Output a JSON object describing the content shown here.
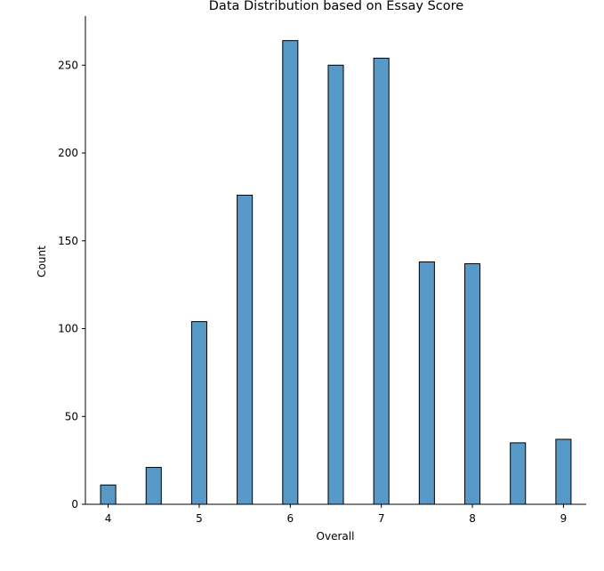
{
  "chart_data": {
    "type": "bar",
    "title": "Data Distribution based on Essay Score",
    "xlabel": "Overall",
    "ylabel": "Count",
    "xlim": [
      3.75,
      9.25
    ],
    "ylim": [
      0,
      278
    ],
    "xticks": [
      4,
      5,
      6,
      7,
      8,
      9
    ],
    "yticks": [
      0,
      50,
      100,
      150,
      200,
      250
    ],
    "bin_width": 0.1667,
    "bars": [
      {
        "x": 4.0,
        "value": 11
      },
      {
        "x": 4.5,
        "value": 21
      },
      {
        "x": 5.0,
        "value": 104
      },
      {
        "x": 5.5,
        "value": 176
      },
      {
        "x": 6.0,
        "value": 264
      },
      {
        "x": 6.5,
        "value": 250
      },
      {
        "x": 7.0,
        "value": 254
      },
      {
        "x": 7.5,
        "value": 138
      },
      {
        "x": 8.0,
        "value": 137
      },
      {
        "x": 8.5,
        "value": 35
      },
      {
        "x": 9.0,
        "value": 37
      }
    ],
    "bar_color": "#5799c7",
    "edge_color": "#000000",
    "grid": false,
    "spines": [
      "left",
      "bottom"
    ]
  }
}
